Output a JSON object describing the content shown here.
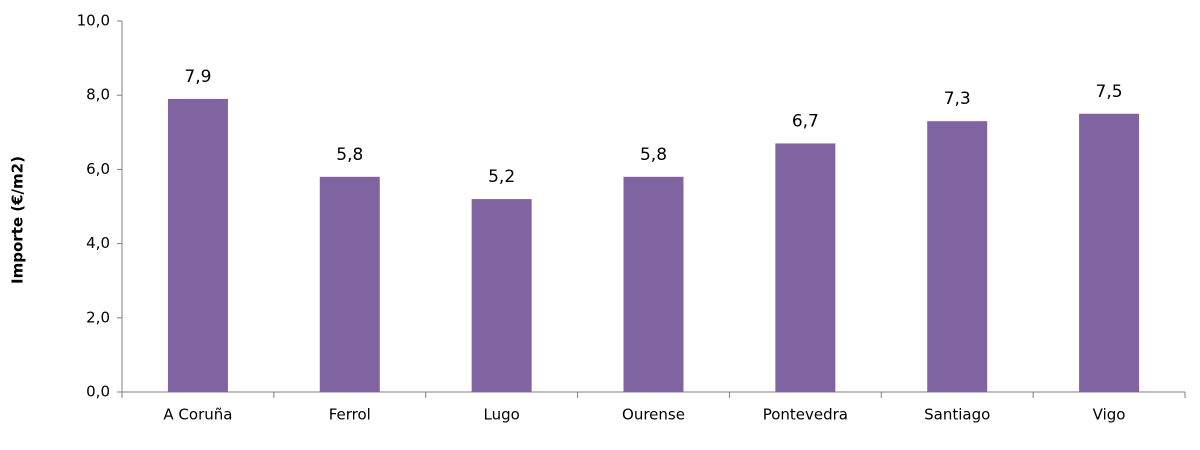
{
  "chart_data": {
    "type": "bar",
    "y_label": "Importe (€/m2)",
    "categories": [
      "A Coruña",
      "Ferrol",
      "Lugo",
      "Ourense",
      "Pontevedra",
      "Santiago",
      "Vigo"
    ],
    "values": [
      7.9,
      5.8,
      5.2,
      5.8,
      6.7,
      7.3,
      7.5
    ],
    "value_labels": [
      "7,9",
      "5,8",
      "5,2",
      "5,8",
      "6,7",
      "7,3",
      "7,5"
    ],
    "color": "#8064a2",
    "ylim": [
      0,
      10
    ],
    "yticks": [
      {
        "value": 0,
        "label": "0,0"
      },
      {
        "value": 2,
        "label": "2,0"
      },
      {
        "value": 4,
        "label": "4,0"
      },
      {
        "value": 6,
        "label": "6,0"
      },
      {
        "value": 8,
        "label": "8,0"
      },
      {
        "value": 10,
        "label": "10,0"
      }
    ],
    "grid": false
  }
}
